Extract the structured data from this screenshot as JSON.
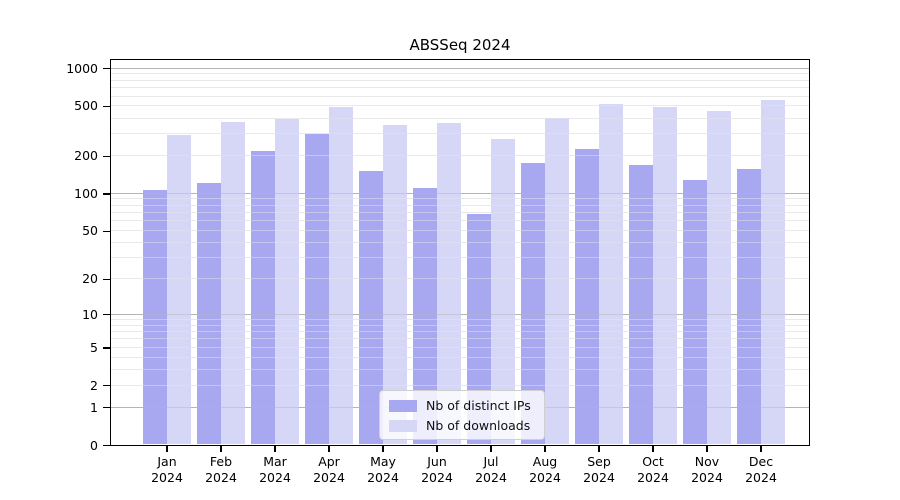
{
  "chart_data": {
    "type": "bar",
    "title": "ABSSeq 2024",
    "categories": [
      "Jan 2024",
      "Feb 2024",
      "Mar 2024",
      "Apr 2024",
      "May 2024",
      "Jun 2024",
      "Jul 2024",
      "Aug 2024",
      "Sep 2024",
      "Oct 2024",
      "Nov 2024",
      "Dec 2024"
    ],
    "series": [
      {
        "name": "Nb of distinct IPs",
        "color": "#a8a8f1",
        "values": [
          105,
          119,
          215,
          296,
          151,
          109,
          68,
          173,
          223,
          166,
          126,
          154
        ]
      },
      {
        "name": "Nb of downloads",
        "color": "#d6d6f7",
        "values": [
          291,
          372,
          393,
          487,
          352,
          362,
          272,
          400,
          518,
          490,
          448,
          551
        ]
      }
    ],
    "y_axis": {
      "scale": "log1p",
      "tick_values": [
        1000,
        500,
        200,
        100,
        50,
        20,
        10,
        5,
        2,
        1,
        0
      ],
      "tick_labels": [
        "1000",
        "500",
        "200",
        "100",
        "50",
        "20",
        "10",
        "5",
        "2",
        "1",
        "0"
      ],
      "range": [
        0,
        1180
      ],
      "major_grid_values": [
        1,
        10,
        100,
        1000
      ],
      "grid": true
    },
    "legend": {
      "position": "lower-center-inside",
      "items": [
        "Nb of distinct IPs",
        "Nb of downloads"
      ]
    }
  }
}
